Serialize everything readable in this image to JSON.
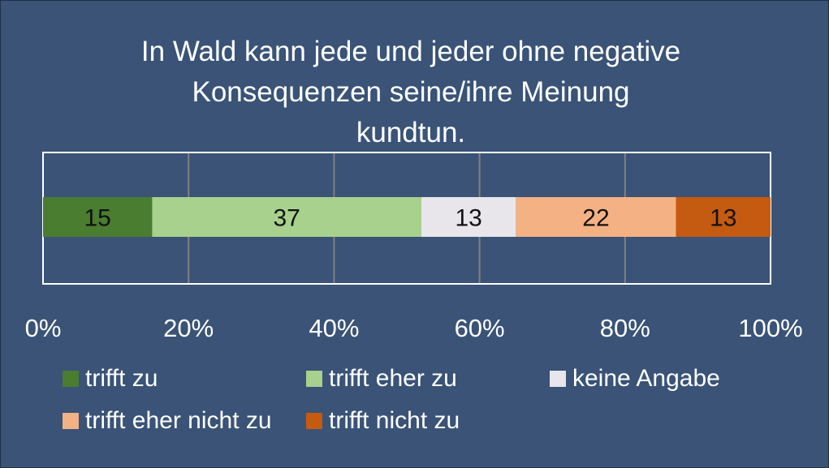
{
  "chart_data": {
    "type": "bar",
    "orientation": "horizontal",
    "stacking": "100% stacked",
    "title": "In Wald kann jede und jeder ohne negative Konsequenzen seine/ihre Meinung kundtun.",
    "title_lines": [
      "In Wald kann jede und jeder ohne negative",
      "Konsequenzen seine/ihre Meinung",
      "kundtun."
    ],
    "categories": [
      ""
    ],
    "series": [
      {
        "name": "trifft zu",
        "values": [
          15
        ],
        "color": "#4a7d2f"
      },
      {
        "name": "trifft eher zu",
        "values": [
          37
        ],
        "color": "#a8d18d"
      },
      {
        "name": "keine Angabe",
        "values": [
          13
        ],
        "color": "#e8e6ea"
      },
      {
        "name": "trifft eher nicht zu",
        "values": [
          22
        ],
        "color": "#f4b183"
      },
      {
        "name": "trifft nicht zu",
        "values": [
          13
        ],
        "color": "#c55a11"
      }
    ],
    "x_ticks": [
      "0%",
      "20%",
      "40%",
      "60%",
      "80%",
      "100%"
    ],
    "xlim": [
      0,
      100
    ],
    "grid": true,
    "legend_position": "bottom",
    "data_labels": true
  },
  "colors": {
    "background": "#3a5377",
    "text": "#ffffff",
    "grid": "#808080",
    "plot_border": "#ffffff"
  }
}
